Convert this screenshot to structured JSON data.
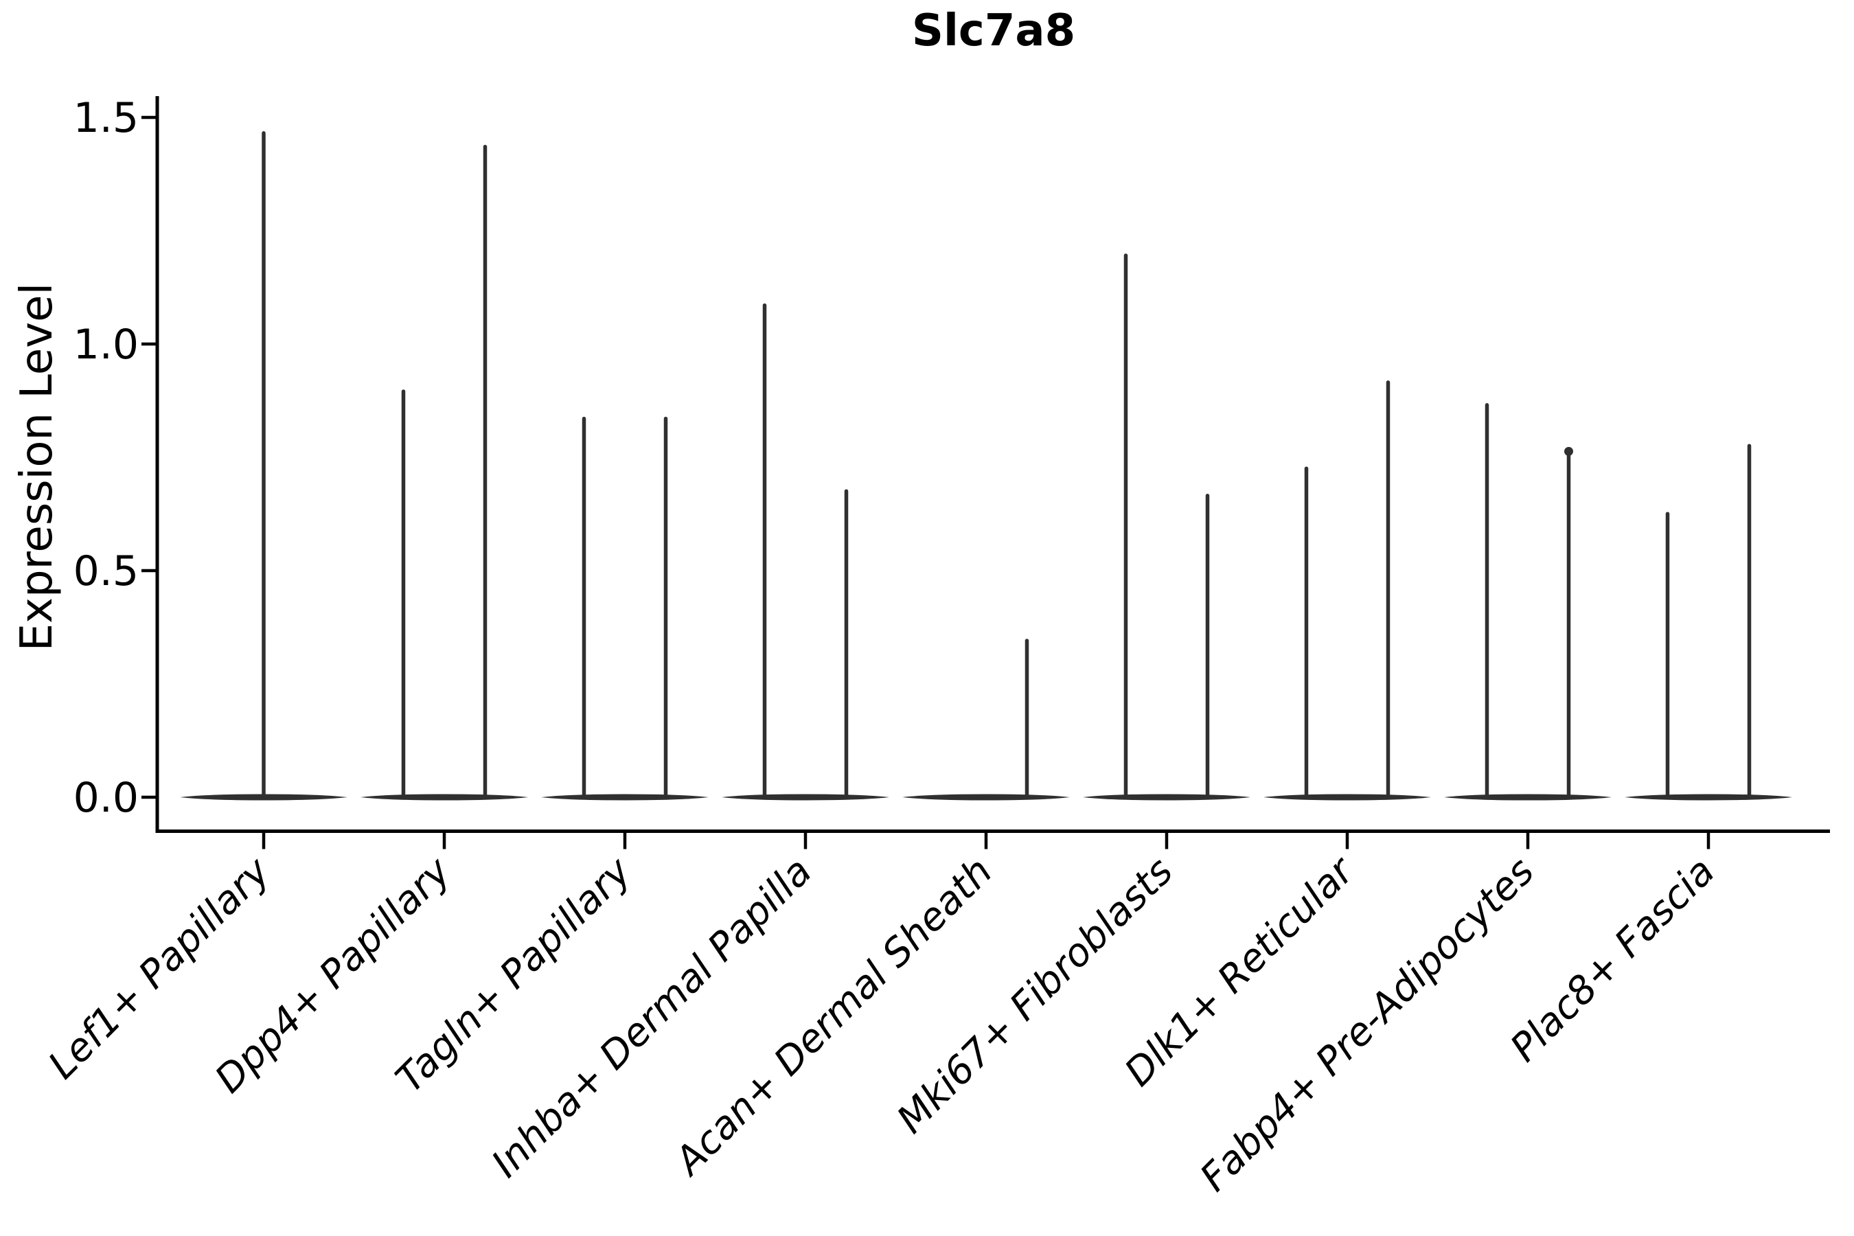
{
  "title": "Slc7a8",
  "style": {
    "background": "#ffffff",
    "axis_color": "#000000",
    "violin_color": "#303030"
  },
  "chart_data": {
    "type": "violin",
    "title": "Slc7a8",
    "xlabel": "",
    "ylabel": "Expression Level",
    "ylim": [
      0,
      1.5
    ],
    "grid": false,
    "legend": "none",
    "ytick_values": [
      0.0,
      0.5,
      1.0,
      1.5
    ],
    "ytick_labels": [
      "0.0",
      "0.5",
      "1.0",
      "1.5"
    ],
    "xtick_rotation_deg": 45,
    "categories": [
      "Lef1+ Papillary",
      "Dpp4+ Papillary",
      "Tagln+ Papillary",
      "Inhba+ Dermal Papilla",
      "Acan+ Dermal Sheath",
      "Mki67+ Fibroblasts",
      "Dlk1+ Reticular",
      "Fabp4+ Pre-Adipocytes",
      "Plac8+ Fascia"
    ],
    "description": "Violin plot; most density is a flat body at 0 with thin spikes reaching the max expression value. Each category holds up to two violins (left/right); a missing spike means that violin is entirely at 0; a single centered spike means one full-width violin.",
    "violins": [
      {
        "category": "Lef1+ Papillary",
        "spikes": [
          {
            "position": "center",
            "max": 1.47
          }
        ]
      },
      {
        "category": "Dpp4+ Papillary",
        "spikes": [
          {
            "position": "left",
            "max": 0.9
          },
          {
            "position": "right",
            "max": 1.44
          }
        ]
      },
      {
        "category": "Tagln+ Papillary",
        "spikes": [
          {
            "position": "left",
            "max": 0.84
          },
          {
            "position": "right",
            "max": 0.84
          }
        ]
      },
      {
        "category": "Inhba+ Dermal Papilla",
        "spikes": [
          {
            "position": "left",
            "max": 1.09
          },
          {
            "position": "right",
            "max": 0.68
          }
        ]
      },
      {
        "category": "Acan+ Dermal Sheath",
        "spikes": [
          {
            "position": "right",
            "max": 0.35
          }
        ]
      },
      {
        "category": "Mki67+ Fibroblasts",
        "spikes": [
          {
            "position": "left",
            "max": 1.2
          },
          {
            "position": "right",
            "max": 0.67
          }
        ]
      },
      {
        "category": "Dlk1+ Reticular",
        "spikes": [
          {
            "position": "left",
            "max": 0.73
          },
          {
            "position": "right",
            "max": 0.92
          }
        ]
      },
      {
        "category": "Fabp4+ Pre-Adipocytes",
        "spikes": [
          {
            "position": "left",
            "max": 0.87
          },
          {
            "position": "right",
            "max": 0.76,
            "top_dot": true
          }
        ]
      },
      {
        "category": "Plac8+ Fascia",
        "spikes": [
          {
            "position": "left",
            "max": 0.63
          },
          {
            "position": "right",
            "max": 0.78
          }
        ]
      }
    ]
  }
}
